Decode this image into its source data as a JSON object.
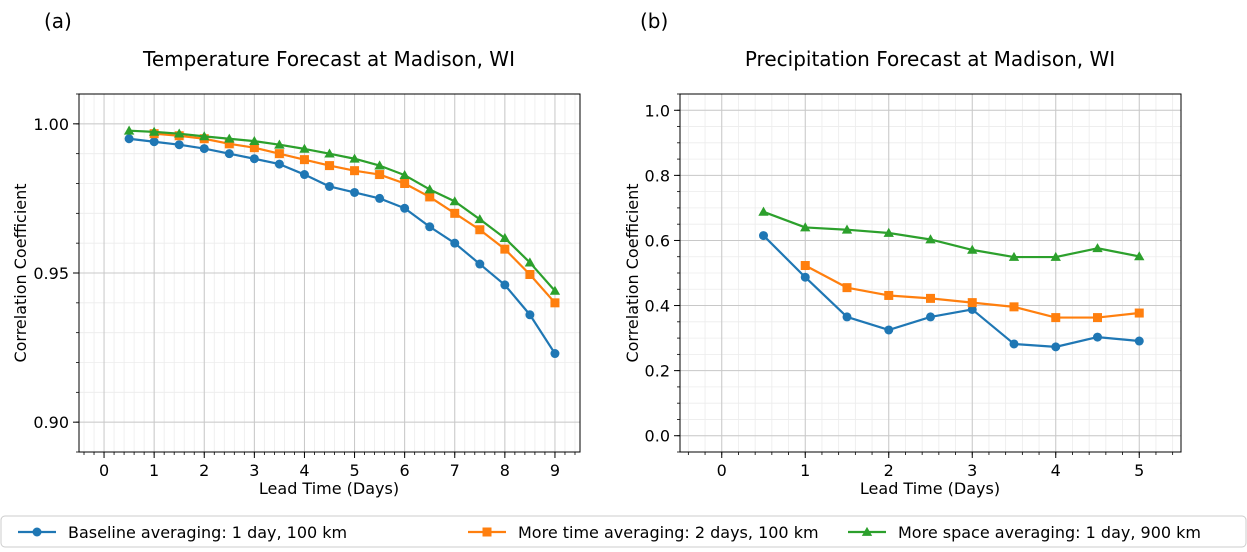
{
  "legend": [
    {
      "label": "Baseline averaging: 1 day, 100 km",
      "color": "#1f77b4",
      "marker": "circle"
    },
    {
      "label": "More time averaging: 2 days, 100 km",
      "color": "#ff7f0e",
      "marker": "square"
    },
    {
      "label": "More space averaging: 1 day, 900 km",
      "color": "#2ca02c",
      "marker": "triangle"
    }
  ],
  "chart_data": [
    {
      "panel": "(a)",
      "type": "line",
      "title": "Temperature Forecast at Madison, WI",
      "xlabel": "Lead Time (Days)",
      "ylabel": "Correlation Coefficient",
      "xlim": [
        -0.5,
        9.5
      ],
      "ylim": [
        0.89,
        1.01
      ],
      "xticks": [
        0,
        1,
        2,
        3,
        4,
        5,
        6,
        7,
        8,
        9
      ],
      "yticks": [
        0.9,
        0.95,
        1.0
      ],
      "ytick_labels": [
        "0.90",
        "0.95",
        "1.00"
      ],
      "minor_x_step": 0.2,
      "minor_y_step": 0.01,
      "grid": true,
      "series": [
        {
          "name": "Baseline averaging: 1 day, 100 km",
          "color": "#1f77b4",
          "marker": "circle",
          "x": [
            0.5,
            1,
            1.5,
            2,
            2.5,
            3,
            3.5,
            4,
            4.5,
            5,
            5.5,
            6,
            6.5,
            7,
            7.5,
            8,
            8.5,
            9
          ],
          "y": [
            0.995,
            0.994,
            0.993,
            0.9917,
            0.99,
            0.9883,
            0.9865,
            0.983,
            0.979,
            0.977,
            0.975,
            0.9717,
            0.9655,
            0.96,
            0.953,
            0.946,
            0.936,
            0.923
          ]
        },
        {
          "name": "More time averaging: 2 days, 100 km",
          "color": "#ff7f0e",
          "marker": "square",
          "x": [
            1,
            1.5,
            2,
            2.5,
            3,
            3.5,
            4,
            4.5,
            5,
            5.5,
            6,
            6.5,
            7,
            7.5,
            8,
            8.5,
            9
          ],
          "y": [
            0.9967,
            0.996,
            0.995,
            0.9933,
            0.992,
            0.99,
            0.988,
            0.986,
            0.9843,
            0.983,
            0.98,
            0.9755,
            0.97,
            0.9645,
            0.958,
            0.9495,
            0.94
          ]
        },
        {
          "name": "More space averaging: 1 day, 900 km",
          "color": "#2ca02c",
          "marker": "triangle",
          "x": [
            0.5,
            1,
            1.5,
            2,
            2.5,
            3,
            3.5,
            4,
            4.5,
            5,
            5.5,
            6,
            6.5,
            7,
            7.5,
            8,
            8.5,
            9
          ],
          "y": [
            0.9977,
            0.9973,
            0.9967,
            0.9958,
            0.995,
            0.9942,
            0.993,
            0.9916,
            0.99,
            0.9883,
            0.986,
            0.9828,
            0.978,
            0.974,
            0.968,
            0.9617,
            0.9535,
            0.944
          ]
        }
      ]
    },
    {
      "panel": "(b)",
      "type": "line",
      "title": "Precipitation Forecast at Madison, WI",
      "xlabel": "Lead Time (Days)",
      "ylabel": "Correlation Coefficient",
      "xlim": [
        -0.5,
        5.5
      ],
      "ylim": [
        -0.05,
        1.05
      ],
      "xticks": [
        0,
        1,
        2,
        3,
        4,
        5
      ],
      "yticks": [
        0.0,
        0.2,
        0.4,
        0.6,
        0.8,
        1.0
      ],
      "ytick_labels": [
        "0.0",
        "0.2",
        "0.4",
        "0.6",
        "0.8",
        "1.0"
      ],
      "minor_x_step": 0.2,
      "minor_y_step": 0.05,
      "grid": true,
      "series": [
        {
          "name": "Baseline averaging: 1 day, 100 km",
          "color": "#1f77b4",
          "marker": "circle",
          "x": [
            0.5,
            1,
            1.5,
            2,
            2.5,
            3,
            3.5,
            4,
            4.5,
            5
          ],
          "y": [
            0.615,
            0.487,
            0.365,
            0.325,
            0.365,
            0.388,
            0.282,
            0.273,
            0.303,
            0.291
          ]
        },
        {
          "name": "More time averaging: 2 days, 100 km",
          "color": "#ff7f0e",
          "marker": "square",
          "x": [
            1,
            1.5,
            2,
            2.5,
            3,
            3.5,
            4,
            4.5,
            5
          ],
          "y": [
            0.523,
            0.455,
            0.431,
            0.422,
            0.409,
            0.396,
            0.363,
            0.363,
            0.377
          ]
        },
        {
          "name": "More space averaging: 1 day, 900 km",
          "color": "#2ca02c",
          "marker": "triangle",
          "x": [
            0.5,
            1,
            1.5,
            2,
            2.5,
            3,
            3.5,
            4,
            4.5,
            5
          ],
          "y": [
            0.688,
            0.64,
            0.633,
            0.623,
            0.603,
            0.571,
            0.549,
            0.549,
            0.576,
            0.551
          ]
        }
      ]
    }
  ]
}
